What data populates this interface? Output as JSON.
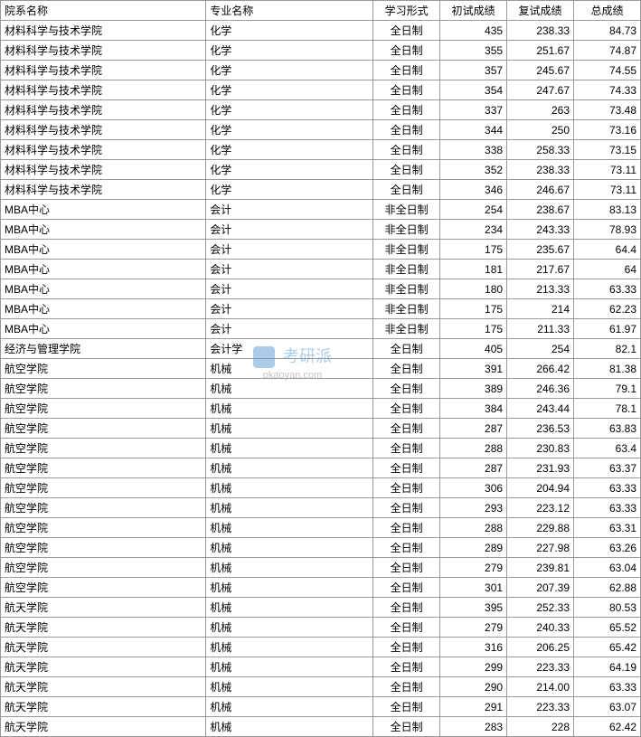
{
  "table": {
    "columns": [
      "院系名称",
      "专业名称",
      "学习形式",
      "初试成绩",
      "复试成绩",
      "总成绩"
    ],
    "column_classes": [
      "col-dept",
      "col-major",
      "col-form",
      "col-score1",
      "col-score2",
      "col-total"
    ],
    "border_color": "#999999",
    "background_color": "#ffffff",
    "text_color": "#000000",
    "font_size": 12,
    "rows": [
      [
        "材料科学与技术学院",
        "化学",
        "全日制",
        "435",
        "238.33",
        "84.73"
      ],
      [
        "材料科学与技术学院",
        "化学",
        "全日制",
        "355",
        "251.67",
        "74.87"
      ],
      [
        "材料科学与技术学院",
        "化学",
        "全日制",
        "357",
        "245.67",
        "74.55"
      ],
      [
        "材料科学与技术学院",
        "化学",
        "全日制",
        "354",
        "247.67",
        "74.33"
      ],
      [
        "材料科学与技术学院",
        "化学",
        "全日制",
        "337",
        "263",
        "73.48"
      ],
      [
        "材料科学与技术学院",
        "化学",
        "全日制",
        "344",
        "250",
        "73.16"
      ],
      [
        "材料科学与技术学院",
        "化学",
        "全日制",
        "338",
        "258.33",
        "73.15"
      ],
      [
        "材料科学与技术学院",
        "化学",
        "全日制",
        "352",
        "238.33",
        "73.11"
      ],
      [
        "材料科学与技术学院",
        "化学",
        "全日制",
        "346",
        "246.67",
        "73.11"
      ],
      [
        "MBA中心",
        "会计",
        "非全日制",
        "254",
        "238.67",
        "83.13"
      ],
      [
        "MBA中心",
        "会计",
        "非全日制",
        "234",
        "243.33",
        "78.93"
      ],
      [
        "MBA中心",
        "会计",
        "非全日制",
        "175",
        "235.67",
        "64.4"
      ],
      [
        "MBA中心",
        "会计",
        "非全日制",
        "181",
        "217.67",
        "64"
      ],
      [
        "MBA中心",
        "会计",
        "非全日制",
        "180",
        "213.33",
        "63.33"
      ],
      [
        "MBA中心",
        "会计",
        "非全日制",
        "175",
        "214",
        "62.23"
      ],
      [
        "MBA中心",
        "会计",
        "非全日制",
        "175",
        "211.33",
        "61.97"
      ],
      [
        "经济与管理学院",
        "会计学",
        "全日制",
        "405",
        "254",
        "82.1"
      ],
      [
        "航空学院",
        "机械",
        "全日制",
        "391",
        "266.42",
        "81.38"
      ],
      [
        "航空学院",
        "机械",
        "全日制",
        "389",
        "246.36",
        "79.1"
      ],
      [
        "航空学院",
        "机械",
        "全日制",
        "384",
        "243.44",
        "78.1"
      ],
      [
        "航空学院",
        "机械",
        "全日制",
        "287",
        "236.53",
        "63.83"
      ],
      [
        "航空学院",
        "机械",
        "全日制",
        "288",
        "230.83",
        "63.4"
      ],
      [
        "航空学院",
        "机械",
        "全日制",
        "287",
        "231.93",
        "63.37"
      ],
      [
        "航空学院",
        "机械",
        "全日制",
        "306",
        "204.94",
        "63.33"
      ],
      [
        "航空学院",
        "机械",
        "全日制",
        "293",
        "223.12",
        "63.33"
      ],
      [
        "航空学院",
        "机械",
        "全日制",
        "288",
        "229.88",
        "63.31"
      ],
      [
        "航空学院",
        "机械",
        "全日制",
        "289",
        "227.98",
        "63.26"
      ],
      [
        "航空学院",
        "机械",
        "全日制",
        "279",
        "239.81",
        "63.04"
      ],
      [
        "航空学院",
        "机械",
        "全日制",
        "301",
        "207.39",
        "62.88"
      ],
      [
        "航天学院",
        "机械",
        "全日制",
        "395",
        "252.33",
        "80.53"
      ],
      [
        "航天学院",
        "机械",
        "全日制",
        "279",
        "240.33",
        "65.52"
      ],
      [
        "航天学院",
        "机械",
        "全日制",
        "316",
        "206.25",
        "65.42"
      ],
      [
        "航天学院",
        "机械",
        "全日制",
        "299",
        "223.33",
        "64.19"
      ],
      [
        "航天学院",
        "机械",
        "全日制",
        "290",
        "214.00",
        "63.33"
      ],
      [
        "航天学院",
        "机械",
        "全日制",
        "291",
        "223.33",
        "63.07"
      ],
      [
        "航天学院",
        "机械",
        "全日制",
        "283",
        "228",
        "62.42"
      ]
    ]
  },
  "watermark": {
    "text": "考研派",
    "url": "okaoyan.com",
    "color": "#5b9bd5"
  }
}
